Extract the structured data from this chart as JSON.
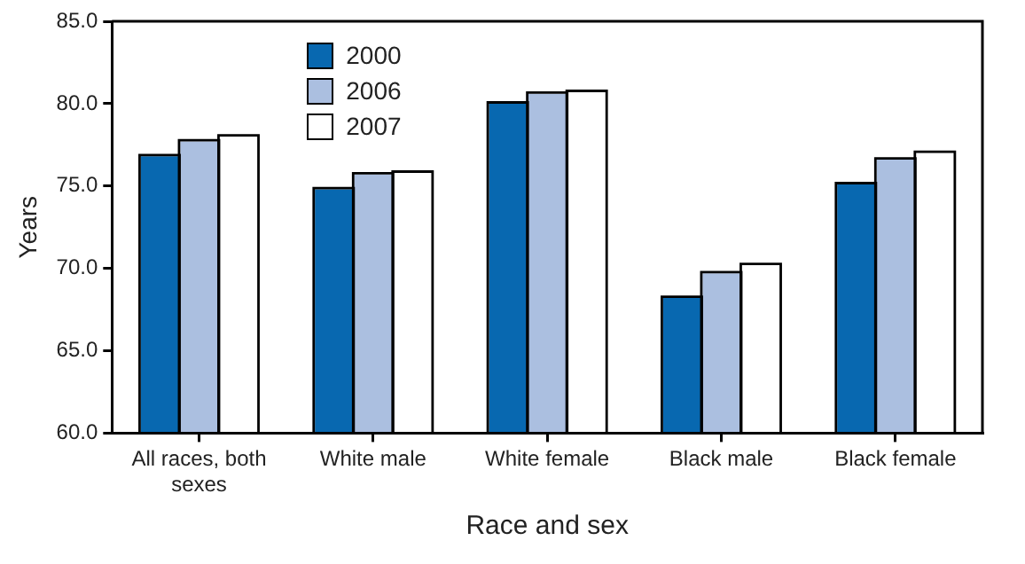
{
  "chart_data": {
    "type": "bar",
    "xlabel": "Race and sex",
    "ylabel": "Years",
    "categories": [
      "All races, both sexes",
      "White male",
      "White female",
      "Black male",
      "Black female"
    ],
    "series": [
      {
        "name": "2000",
        "color": "#0868b0",
        "values": [
          76.8,
          74.8,
          80.0,
          68.2,
          75.1
        ]
      },
      {
        "name": "2006",
        "color": "#abbfe0",
        "values": [
          77.7,
          75.7,
          80.6,
          69.7,
          76.6
        ]
      },
      {
        "name": "2007",
        "color": "#ffffff",
        "values": [
          78.0,
          75.8,
          80.7,
          70.2,
          77.0
        ]
      }
    ],
    "ylim": [
      60,
      85
    ],
    "yticks": [
      {
        "value": 60,
        "label": "60.0"
      },
      {
        "value": 65,
        "label": "65.0"
      },
      {
        "value": 70,
        "label": "70.0"
      },
      {
        "value": 75,
        "label": "75.0"
      },
      {
        "value": 80,
        "label": "80.0"
      },
      {
        "value": 85,
        "label": "85.0"
      }
    ],
    "grid": false,
    "legend": "top left"
  }
}
